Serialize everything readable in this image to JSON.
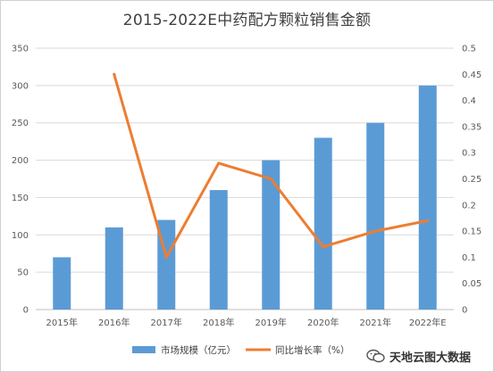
{
  "chart_data": {
    "type": "bar",
    "title": "2015-2022E中药配方颗粒销售金额",
    "categories": [
      "2015年",
      "2016年",
      "2017年",
      "2018年",
      "2019年",
      "2020年",
      "2021年",
      "2022年E"
    ],
    "series": [
      {
        "name": "市场规模（亿元）",
        "type": "bar",
        "axis": "left",
        "color": "#5B9BD5",
        "values": [
          70,
          110,
          120,
          160,
          200,
          230,
          250,
          300
        ]
      },
      {
        "name": "同比增长率（%）",
        "type": "line",
        "axis": "right",
        "color": "#ED7D31",
        "values": [
          null,
          0.45,
          0.1,
          0.28,
          0.25,
          0.12,
          0.15,
          0.17
        ]
      }
    ],
    "y_left": {
      "min": 0,
      "max": 350,
      "step": 50,
      "tick_labels": [
        "0",
        "50",
        "100",
        "150",
        "200",
        "250",
        "300",
        "350"
      ]
    },
    "y_right": {
      "min": 0,
      "max": 0.5,
      "step": 0.05,
      "tick_labels": [
        "0",
        "0.05",
        "0.1",
        "0.15",
        "0.2",
        "0.25",
        "0.3",
        "0.35",
        "0.4",
        "0.45",
        "0.5"
      ]
    },
    "grid": true,
    "legend_position": "bottom"
  },
  "watermark": {
    "text": "天地云图大数据",
    "icon": "wechat-icon"
  }
}
